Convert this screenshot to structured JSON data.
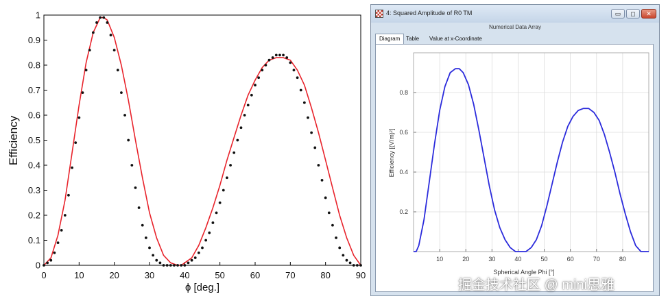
{
  "chart_data": [
    {
      "type": "line",
      "xlabel": "ϕ [deg.]",
      "ylabel": "Efficiency",
      "xlim": [
        0,
        90
      ],
      "ylim": [
        0,
        1
      ],
      "xticks": [
        0,
        10,
        20,
        30,
        40,
        50,
        60,
        70,
        80,
        90
      ],
      "yticks": [
        0,
        0.1,
        0.2,
        0.3,
        0.4,
        0.5,
        0.6,
        0.7,
        0.8,
        0.9,
        1
      ],
      "grid": false,
      "series": [
        {
          "style": "line",
          "color": "#e8232b",
          "x": [
            0,
            2,
            4,
            6,
            8,
            10,
            12,
            14,
            16,
            17,
            18,
            20,
            22,
            24,
            26,
            28,
            30,
            32,
            34,
            36,
            38,
            39,
            40,
            42,
            44,
            46,
            48,
            50,
            52,
            54,
            56,
            58,
            60,
            62,
            64,
            66,
            68,
            70,
            72,
            74,
            76,
            78,
            80,
            82,
            84,
            86,
            88,
            90
          ],
          "y": [
            0.0,
            0.03,
            0.12,
            0.26,
            0.45,
            0.64,
            0.81,
            0.93,
            0.99,
            0.99,
            0.98,
            0.91,
            0.8,
            0.66,
            0.5,
            0.35,
            0.21,
            0.11,
            0.04,
            0.01,
            0.0,
            0.0,
            0.01,
            0.03,
            0.08,
            0.15,
            0.23,
            0.32,
            0.42,
            0.51,
            0.6,
            0.68,
            0.74,
            0.79,
            0.82,
            0.83,
            0.83,
            0.82,
            0.78,
            0.72,
            0.63,
            0.53,
            0.42,
            0.31,
            0.2,
            0.11,
            0.04,
            0.0
          ]
        },
        {
          "style": "dots",
          "color": "#111111",
          "x": [
            0,
            1,
            2,
            3,
            4,
            5,
            6,
            7,
            8,
            9,
            10,
            11,
            12,
            13,
            14,
            15,
            16,
            17,
            18,
            19,
            20,
            21,
            22,
            23,
            24,
            25,
            26,
            27,
            28,
            29,
            30,
            31,
            32,
            33,
            34,
            35,
            36,
            37,
            38,
            39,
            40,
            41,
            42,
            43,
            44,
            45,
            46,
            47,
            48,
            49,
            50,
            51,
            52,
            53,
            54,
            55,
            56,
            57,
            58,
            59,
            60,
            61,
            62,
            63,
            64,
            65,
            66,
            67,
            68,
            69,
            70,
            71,
            72,
            73,
            74,
            75,
            76,
            77,
            78,
            79,
            80,
            81,
            82,
            83,
            84,
            85,
            86,
            87,
            88,
            89,
            90
          ],
          "y": [
            0.0,
            0.01,
            0.02,
            0.05,
            0.09,
            0.14,
            0.2,
            0.28,
            0.39,
            0.49,
            0.59,
            0.69,
            0.78,
            0.86,
            0.93,
            0.97,
            0.99,
            0.99,
            0.97,
            0.92,
            0.86,
            0.78,
            0.69,
            0.6,
            0.5,
            0.4,
            0.31,
            0.23,
            0.16,
            0.11,
            0.07,
            0.04,
            0.02,
            0.01,
            0.0,
            0.0,
            0.0,
            0.0,
            0.0,
            0.0,
            0.0,
            0.01,
            0.02,
            0.03,
            0.05,
            0.07,
            0.1,
            0.13,
            0.17,
            0.21,
            0.25,
            0.3,
            0.35,
            0.4,
            0.45,
            0.5,
            0.55,
            0.6,
            0.64,
            0.68,
            0.72,
            0.75,
            0.78,
            0.8,
            0.82,
            0.83,
            0.84,
            0.84,
            0.84,
            0.83,
            0.81,
            0.78,
            0.75,
            0.7,
            0.65,
            0.59,
            0.53,
            0.47,
            0.4,
            0.34,
            0.27,
            0.21,
            0.16,
            0.11,
            0.07,
            0.04,
            0.02,
            0.01,
            0.0,
            0.0,
            0.0
          ]
        }
      ]
    },
    {
      "type": "line",
      "xlabel": "Spherical Angle Phi [°]",
      "ylabel": "Efficiency [(V/m)²]",
      "xlim": [
        0,
        90
      ],
      "ylim": [
        0,
        1
      ],
      "xticks": [
        10,
        20,
        30,
        40,
        50,
        60,
        70,
        80
      ],
      "yticks": [
        0.2,
        0.4,
        0.6,
        0.8
      ],
      "grid": true,
      "series": [
        {
          "style": "line",
          "color": "#2b2bdc",
          "x": [
            0,
            1,
            2,
            4,
            6,
            8,
            10,
            12,
            14,
            16,
            17.5,
            19,
            21,
            23,
            25,
            27,
            29,
            31,
            33,
            35,
            37,
            39,
            41,
            42,
            43,
            45,
            47,
            49,
            51,
            53,
            55,
            57,
            59,
            61,
            63,
            65,
            67,
            69,
            71,
            73,
            75,
            77,
            79,
            81,
            83,
            85,
            87,
            88,
            89,
            90
          ],
          "y": [
            0.0,
            0.0,
            0.03,
            0.16,
            0.35,
            0.54,
            0.71,
            0.83,
            0.9,
            0.92,
            0.92,
            0.9,
            0.84,
            0.74,
            0.61,
            0.47,
            0.33,
            0.21,
            0.12,
            0.06,
            0.02,
            0.0,
            0.0,
            0.0,
            0.0,
            0.02,
            0.06,
            0.13,
            0.23,
            0.34,
            0.45,
            0.55,
            0.63,
            0.68,
            0.71,
            0.72,
            0.72,
            0.7,
            0.66,
            0.59,
            0.5,
            0.4,
            0.29,
            0.19,
            0.1,
            0.03,
            0.0,
            0.0,
            0.0,
            0.0
          ]
        }
      ]
    }
  ],
  "window": {
    "title": "4: Squared Amplitude of R0 TM",
    "panel_title": "Numerical Data Array",
    "tabs": [
      "Diagram",
      "Table",
      "Value at x-Coordinate"
    ],
    "active_tab": "Diagram",
    "buttons": {
      "minimize": "▭",
      "maximize": "◻",
      "close": "✕"
    }
  },
  "watermark": "掘金技术社区 @ mini思雅"
}
